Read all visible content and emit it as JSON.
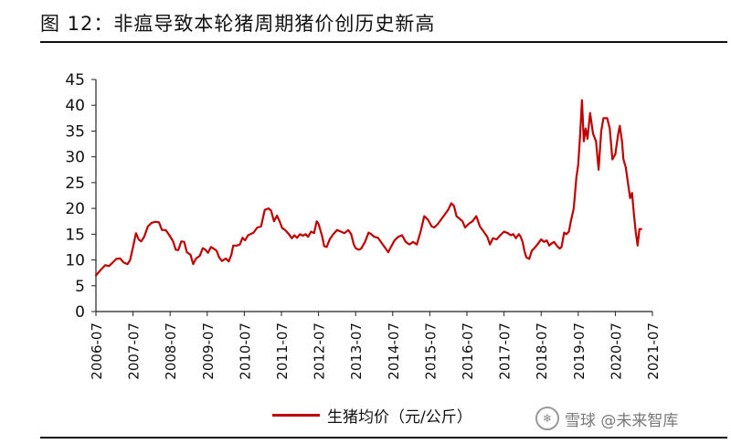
{
  "figure": {
    "title": "图 12：非瘟导致本轮猪周期猪价创历史新高"
  },
  "legend": {
    "label": "生猪均价（元/公斤）"
  },
  "watermark": {
    "text": "雪球 @未来智库",
    "logo": "snowball-logo"
  },
  "colors": {
    "line": "#c00000",
    "axis": "#222222"
  },
  "chart_data": {
    "type": "line",
    "title": "",
    "xlabel": "",
    "ylabel": "",
    "ylim": [
      0,
      45
    ],
    "yticks": [
      0,
      5,
      10,
      15,
      20,
      25,
      30,
      35,
      40,
      45
    ],
    "xlim": [
      2006.5,
      2021.5
    ],
    "xticks": [
      {
        "t": 2006.5,
        "label": "2006-07"
      },
      {
        "t": 2007.5,
        "label": "2007-07"
      },
      {
        "t": 2008.5,
        "label": "2008-07"
      },
      {
        "t": 2009.5,
        "label": "2009-07"
      },
      {
        "t": 2010.5,
        "label": "2010-07"
      },
      {
        "t": 2011.5,
        "label": "2011-07"
      },
      {
        "t": 2012.5,
        "label": "2012-07"
      },
      {
        "t": 2013.5,
        "label": "2013-07"
      },
      {
        "t": 2014.5,
        "label": "2014-07"
      },
      {
        "t": 2015.5,
        "label": "2015-07"
      },
      {
        "t": 2016.5,
        "label": "2016-07"
      },
      {
        "t": 2017.5,
        "label": "2017-07"
      },
      {
        "t": 2018.5,
        "label": "2018-07"
      },
      {
        "t": 2019.5,
        "label": "2019-07"
      },
      {
        "t": 2020.5,
        "label": "2020-07"
      },
      {
        "t": 2021.5,
        "label": "2021-07"
      }
    ],
    "grid": false,
    "legend_position": "bottom",
    "series": [
      {
        "name": "生猪均价（元/公斤）",
        "points": [
          [
            2006.5,
            7.0
          ],
          [
            2006.62,
            8.0
          ],
          [
            2006.75,
            9.0
          ],
          [
            2006.85,
            8.8
          ],
          [
            2006.95,
            9.5
          ],
          [
            2007.05,
            10.2
          ],
          [
            2007.15,
            10.3
          ],
          [
            2007.25,
            9.5
          ],
          [
            2007.35,
            9.2
          ],
          [
            2007.42,
            10.0
          ],
          [
            2007.5,
            12.5
          ],
          [
            2007.58,
            15.2
          ],
          [
            2007.65,
            14.0
          ],
          [
            2007.72,
            13.6
          ],
          [
            2007.8,
            14.5
          ],
          [
            2007.9,
            16.5
          ],
          [
            2008.0,
            17.2
          ],
          [
            2008.1,
            17.4
          ],
          [
            2008.2,
            17.3
          ],
          [
            2008.28,
            15.8
          ],
          [
            2008.38,
            15.8
          ],
          [
            2008.48,
            14.8
          ],
          [
            2008.58,
            13.6
          ],
          [
            2008.65,
            12.0
          ],
          [
            2008.72,
            11.9
          ],
          [
            2008.8,
            13.6
          ],
          [
            2008.88,
            13.5
          ],
          [
            2008.95,
            11.5
          ],
          [
            2009.05,
            11.0
          ],
          [
            2009.12,
            9.2
          ],
          [
            2009.2,
            10.3
          ],
          [
            2009.3,
            10.8
          ],
          [
            2009.38,
            12.3
          ],
          [
            2009.45,
            12.0
          ],
          [
            2009.52,
            11.4
          ],
          [
            2009.6,
            12.5
          ],
          [
            2009.67,
            12.2
          ],
          [
            2009.75,
            11.8
          ],
          [
            2009.82,
            10.5
          ],
          [
            2009.9,
            9.8
          ],
          [
            2010.0,
            10.3
          ],
          [
            2010.08,
            9.7
          ],
          [
            2010.15,
            11.0
          ],
          [
            2010.2,
            12.8
          ],
          [
            2010.3,
            12.8
          ],
          [
            2010.38,
            13.0
          ],
          [
            2010.45,
            14.3
          ],
          [
            2010.52,
            13.8
          ],
          [
            2010.6,
            14.8
          ],
          [
            2010.67,
            15.0
          ],
          [
            2010.75,
            15.3
          ],
          [
            2010.85,
            16.3
          ],
          [
            2010.95,
            16.5
          ],
          [
            2011.05,
            19.7
          ],
          [
            2011.15,
            20.0
          ],
          [
            2011.22,
            19.6
          ],
          [
            2011.3,
            17.5
          ],
          [
            2011.38,
            18.6
          ],
          [
            2011.45,
            17.5
          ],
          [
            2011.52,
            16.2
          ],
          [
            2011.6,
            15.8
          ],
          [
            2011.7,
            15.0
          ],
          [
            2011.78,
            14.2
          ],
          [
            2011.85,
            14.8
          ],
          [
            2011.92,
            14.3
          ],
          [
            2012.0,
            15.0
          ],
          [
            2012.08,
            14.7
          ],
          [
            2012.15,
            15.0
          ],
          [
            2012.22,
            14.5
          ],
          [
            2012.3,
            15.5
          ],
          [
            2012.38,
            15.2
          ],
          [
            2012.45,
            17.5
          ],
          [
            2012.5,
            17.0
          ],
          [
            2012.6,
            14.5
          ],
          [
            2012.65,
            12.7
          ],
          [
            2012.72,
            12.5
          ],
          [
            2012.8,
            14.0
          ],
          [
            2012.9,
            15.0
          ],
          [
            2013.0,
            15.8
          ],
          [
            2013.1,
            15.5
          ],
          [
            2013.2,
            15.2
          ],
          [
            2013.3,
            15.8
          ],
          [
            2013.38,
            15.0
          ],
          [
            2013.45,
            13.0
          ],
          [
            2013.5,
            12.3
          ],
          [
            2013.58,
            12.0
          ],
          [
            2013.65,
            12.2
          ],
          [
            2013.75,
            13.5
          ],
          [
            2013.85,
            15.3
          ],
          [
            2013.92,
            15.0
          ],
          [
            2014.0,
            14.5
          ],
          [
            2014.1,
            14.3
          ],
          [
            2014.18,
            13.5
          ],
          [
            2014.28,
            12.5
          ],
          [
            2014.38,
            11.5
          ],
          [
            2014.45,
            12.5
          ],
          [
            2014.55,
            13.8
          ],
          [
            2014.65,
            14.5
          ],
          [
            2014.75,
            14.8
          ],
          [
            2014.85,
            13.5
          ],
          [
            2014.95,
            13.0
          ],
          [
            2015.05,
            13.5
          ],
          [
            2015.15,
            13.0
          ],
          [
            2015.25,
            15.5
          ],
          [
            2015.35,
            18.5
          ],
          [
            2015.45,
            17.8
          ],
          [
            2015.55,
            16.5
          ],
          [
            2015.62,
            16.3
          ],
          [
            2015.72,
            17.0
          ],
          [
            2015.82,
            18.0
          ],
          [
            2015.92,
            19.0
          ],
          [
            2016.0,
            19.8
          ],
          [
            2016.08,
            21.0
          ],
          [
            2016.15,
            20.5
          ],
          [
            2016.22,
            18.5
          ],
          [
            2016.3,
            18.0
          ],
          [
            2016.38,
            17.5
          ],
          [
            2016.45,
            16.3
          ],
          [
            2016.55,
            17.0
          ],
          [
            2016.65,
            17.5
          ],
          [
            2016.75,
            18.5
          ],
          [
            2016.85,
            16.5
          ],
          [
            2016.95,
            15.5
          ],
          [
            2017.05,
            14.5
          ],
          [
            2017.12,
            13.0
          ],
          [
            2017.2,
            14.2
          ],
          [
            2017.3,
            14.0
          ],
          [
            2017.4,
            14.8
          ],
          [
            2017.5,
            15.5
          ],
          [
            2017.6,
            15.2
          ],
          [
            2017.68,
            14.8
          ],
          [
            2017.75,
            15.0
          ],
          [
            2017.82,
            14.2
          ],
          [
            2017.9,
            15.0
          ],
          [
            2017.95,
            14.5
          ],
          [
            2018.0,
            13.5
          ],
          [
            2018.05,
            11.8
          ],
          [
            2018.1,
            10.5
          ],
          [
            2018.18,
            10.2
          ],
          [
            2018.25,
            11.8
          ],
          [
            2018.32,
            12.3
          ],
          [
            2018.42,
            13.2
          ],
          [
            2018.5,
            14.0
          ],
          [
            2018.58,
            13.5
          ],
          [
            2018.65,
            13.8
          ],
          [
            2018.72,
            12.8
          ],
          [
            2018.78,
            13.2
          ],
          [
            2018.85,
            13.5
          ],
          [
            2018.92,
            12.8
          ],
          [
            2019.0,
            12.2
          ],
          [
            2019.05,
            12.5
          ],
          [
            2019.12,
            15.3
          ],
          [
            2019.18,
            15.0
          ],
          [
            2019.25,
            15.5
          ],
          [
            2019.3,
            17.5
          ],
          [
            2019.38,
            20.0
          ],
          [
            2019.45,
            26.0
          ],
          [
            2019.5,
            28.5
          ],
          [
            2019.55,
            34.0
          ],
          [
            2019.6,
            41.0
          ],
          [
            2019.65,
            33.0
          ],
          [
            2019.7,
            35.5
          ],
          [
            2019.75,
            33.5
          ],
          [
            2019.82,
            38.5
          ],
          [
            2019.9,
            34.5
          ],
          [
            2019.98,
            33.0
          ],
          [
            2020.05,
            27.5
          ],
          [
            2020.12,
            35.0
          ],
          [
            2020.18,
            37.5
          ],
          [
            2020.28,
            37.5
          ],
          [
            2020.35,
            35.5
          ],
          [
            2020.42,
            29.5
          ],
          [
            2020.5,
            30.5
          ],
          [
            2020.58,
            34.5
          ],
          [
            2020.62,
            36.0
          ],
          [
            2020.68,
            33.0
          ],
          [
            2020.72,
            29.5
          ],
          [
            2020.78,
            28.0
          ],
          [
            2020.85,
            24.5
          ],
          [
            2020.9,
            22.0
          ],
          [
            2020.95,
            23.0
          ],
          [
            2021.0,
            19.0
          ],
          [
            2021.05,
            15.5
          ],
          [
            2021.1,
            12.8
          ],
          [
            2021.15,
            16.0
          ],
          [
            2021.2,
            16.0
          ]
        ]
      }
    ]
  }
}
